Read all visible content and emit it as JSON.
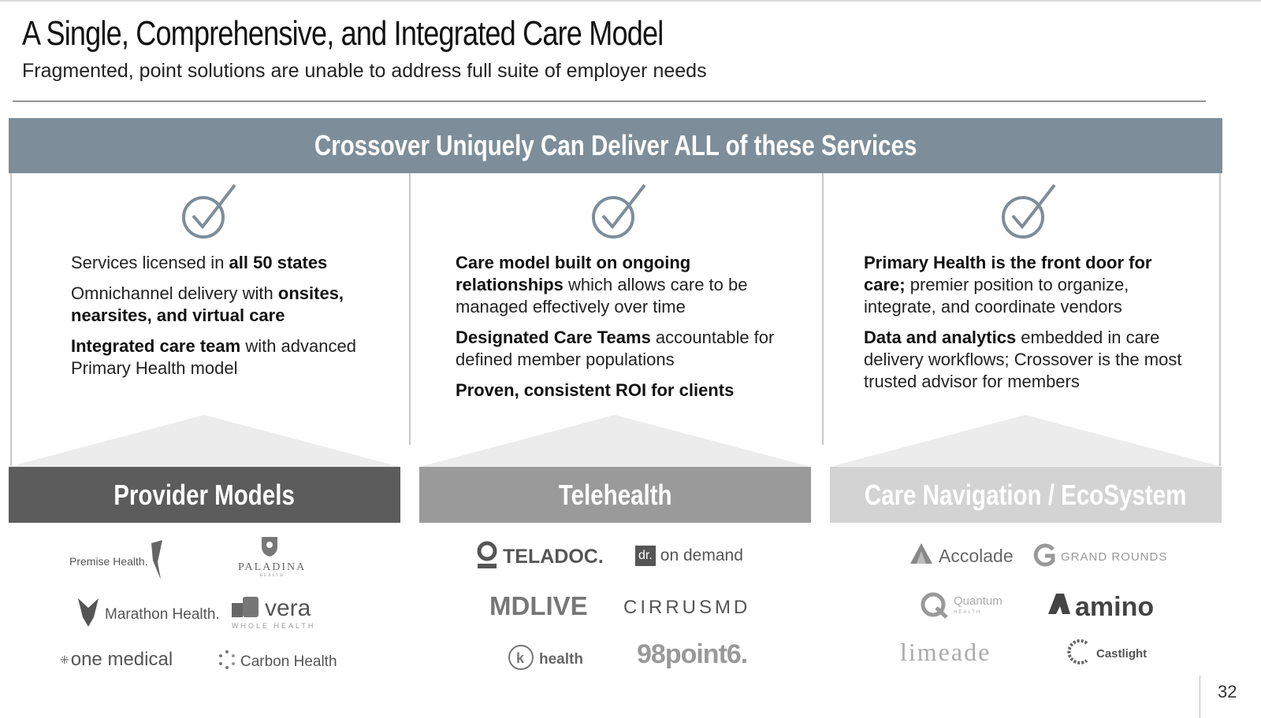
{
  "title": "A Single, Comprehensive, and Integrated Care Model",
  "subtitle": "Fragmented, point solutions are unable to address full suite of employer needs",
  "banner": "Crossover Uniquely Can Deliver ALL of these Services",
  "columns": [
    {
      "points": [
        {
          "parts": [
            {
              "t": "Services licensed in "
            },
            {
              "t": "all  50 states",
              "b": true
            }
          ]
        },
        {
          "parts": [
            {
              "t": "Omnichannel delivery with  "
            },
            {
              "t": "onsites, nearsites, and virtual care",
              "b": true
            }
          ]
        },
        {
          "parts": [
            {
              "t": "Integrated care team",
              "b": true
            },
            {
              "t": " with advanced Primary Health model"
            }
          ]
        }
      ],
      "bar_label": "Provider Models",
      "logos": [
        "Premise Health.",
        "PALADINA",
        "Marathon Health.",
        "vera",
        "one medical",
        "Carbon Health"
      ]
    },
    {
      "points": [
        {
          "parts": [
            {
              "t": "Care model built on ongoing relationships",
              "b": true
            },
            {
              "t": " which allows care to be managed effectively over time"
            }
          ]
        },
        {
          "parts": [
            {
              "t": "Designated Care Teams",
              "b": true
            },
            {
              "t": " accountable for defined member populations"
            }
          ]
        },
        {
          "parts": [
            {
              "t": "Proven, consistent ROI for clients",
              "b": true
            }
          ]
        }
      ],
      "bar_label": "Telehealth",
      "logos": [
        "TELADOC.",
        "on demand",
        "MDLIVE",
        "CIRRUSMD",
        "health",
        "98point6."
      ]
    },
    {
      "points": [
        {
          "parts": [
            {
              "t": "Primary Health is the front door for care;",
              "b": true
            },
            {
              "t": " premier position to organize, integrate, and coordinate vendors"
            }
          ]
        },
        {
          "parts": [
            {
              "t": "Data and analytics",
              "b": true
            },
            {
              "t": " embedded in care delivery workflows; Crossover is the most trusted advisor for members"
            }
          ]
        }
      ],
      "bar_label": "Care Navigation / EcoSystem",
      "logos": [
        "Accolade",
        "GRAND ROUNDS",
        "Quantum",
        "amino",
        "limeade",
        "Castlight"
      ]
    }
  ],
  "logo_sublabels": {
    "paladina": "HEALTH",
    "vera": "WHOLE HEALTH",
    "quantum": "HEALTH",
    "dr": "dr."
  },
  "page_number": "32",
  "colors": {
    "banner": "#7d8e9a",
    "provider_bar": "#5c5c5c",
    "telehealth_bar": "#9a9a9a",
    "navigation_bar": "#d3d3d3",
    "check": "#7d8e9a"
  }
}
